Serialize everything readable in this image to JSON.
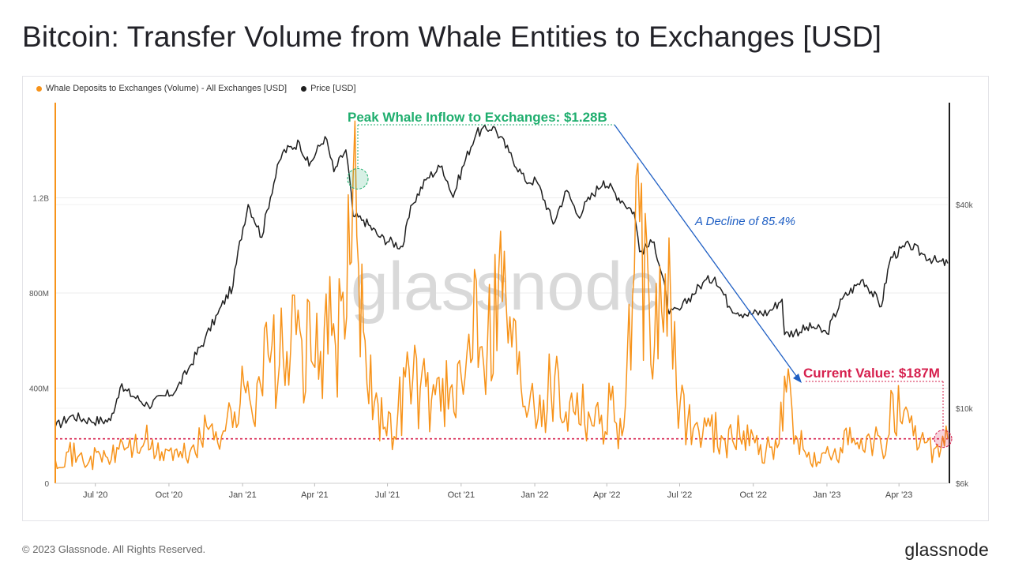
{
  "page": {
    "title": "Bitcoin: Transfer Volume from Whale Entities to Exchanges [USD]",
    "copyright": "© 2023 Glassnode. All Rights Reserved.",
    "logo": "glassnode",
    "watermark": "glassnode"
  },
  "legend": {
    "series1_label": "Whale Deposits to Exchanges (Volume) - All Exchanges [USD]",
    "series2_label": "Price [USD]"
  },
  "chart_data": {
    "type": "line",
    "y_left": {
      "ticks": [
        0,
        400000000,
        800000000,
        1200000000
      ],
      "tick_labels": [
        "0",
        "400M",
        "800M",
        "1.2B"
      ],
      "ylim": [
        0,
        1600000000
      ]
    },
    "y_right": {
      "scale": "log",
      "ticks": [
        6000,
        10000,
        40000
      ],
      "tick_labels": [
        "$6k",
        "$10k",
        "$40k"
      ],
      "ylim": [
        6000,
        80000
      ]
    },
    "x_ticks": [
      "Jul '20",
      "Oct '20",
      "Jan '21",
      "Apr '21",
      "Jul '21",
      "Oct '21",
      "Jan '22",
      "Apr '22",
      "Jul '22",
      "Oct '22",
      "Jan '23",
      "Apr '23"
    ],
    "x_range": [
      "2020-05-12",
      "2023-06-01"
    ],
    "grid": true,
    "legend_position": "top-left",
    "series": [
      {
        "name": "Whale Deposits to Exchanges (Volume) - All Exchanges [USD]",
        "color": "#f7931a",
        "axis": "left",
        "points": [
          [
            "2020-05-12",
            100000000
          ],
          [
            "2020-05-26",
            130000000
          ],
          [
            "2020-06-09",
            110000000
          ],
          [
            "2020-06-23",
            90000000
          ],
          [
            "2020-07-07",
            120000000
          ],
          [
            "2020-07-21",
            100000000
          ],
          [
            "2020-08-04",
            170000000
          ],
          [
            "2020-08-18",
            150000000
          ],
          [
            "2020-09-01",
            180000000
          ],
          [
            "2020-09-15",
            120000000
          ],
          [
            "2020-09-29",
            140000000
          ],
          [
            "2020-10-13",
            110000000
          ],
          [
            "2020-10-27",
            130000000
          ],
          [
            "2020-11-10",
            180000000
          ],
          [
            "2020-11-24",
            250000000
          ],
          [
            "2020-12-08",
            220000000
          ],
          [
            "2020-12-22",
            300000000
          ],
          [
            "2021-01-05",
            380000000
          ],
          [
            "2021-01-19",
            420000000
          ],
          [
            "2021-02-02",
            540000000
          ],
          [
            "2021-02-16",
            500000000
          ],
          [
            "2021-03-02",
            560000000
          ],
          [
            "2021-03-16",
            600000000
          ],
          [
            "2021-03-30",
            500000000
          ],
          [
            "2021-04-13",
            650000000
          ],
          [
            "2021-04-27",
            580000000
          ],
          [
            "2021-05-11",
            700000000
          ],
          [
            "2021-05-19",
            1280000000
          ],
          [
            "2021-05-26",
            900000000
          ],
          [
            "2021-06-03",
            600000000
          ],
          [
            "2021-06-17",
            380000000
          ],
          [
            "2021-06-30",
            200000000
          ],
          [
            "2021-07-14",
            300000000
          ],
          [
            "2021-07-28",
            480000000
          ],
          [
            "2021-08-11",
            400000000
          ],
          [
            "2021-08-25",
            350000000
          ],
          [
            "2021-09-08",
            440000000
          ],
          [
            "2021-09-22",
            300000000
          ],
          [
            "2021-10-06",
            450000000
          ],
          [
            "2021-10-20",
            850000000
          ],
          [
            "2021-11-03",
            600000000
          ],
          [
            "2021-11-17",
            900000000
          ],
          [
            "2021-12-01",
            700000000
          ],
          [
            "2021-12-15",
            400000000
          ],
          [
            "2021-12-29",
            420000000
          ],
          [
            "2022-01-12",
            350000000
          ],
          [
            "2022-01-26",
            450000000
          ],
          [
            "2022-02-09",
            300000000
          ],
          [
            "2022-02-23",
            380000000
          ],
          [
            "2022-03-09",
            300000000
          ],
          [
            "2022-03-23",
            250000000
          ],
          [
            "2022-04-06",
            350000000
          ],
          [
            "2022-04-20",
            200000000
          ],
          [
            "2022-05-12",
            1100000000
          ],
          [
            "2022-05-26",
            500000000
          ],
          [
            "2022-06-13",
            880000000
          ],
          [
            "2022-06-27",
            400000000
          ],
          [
            "2022-07-11",
            260000000
          ],
          [
            "2022-07-25",
            220000000
          ],
          [
            "2022-08-08",
            240000000
          ],
          [
            "2022-08-22",
            200000000
          ],
          [
            "2022-09-05",
            180000000
          ],
          [
            "2022-09-19",
            220000000
          ],
          [
            "2022-10-03",
            170000000
          ],
          [
            "2022-10-17",
            140000000
          ],
          [
            "2022-10-31",
            150000000
          ],
          [
            "2022-11-09",
            450000000
          ],
          [
            "2022-11-23",
            200000000
          ],
          [
            "2022-12-07",
            110000000
          ],
          [
            "2022-12-21",
            90000000
          ],
          [
            "2023-01-04",
            120000000
          ],
          [
            "2023-01-18",
            150000000
          ],
          [
            "2023-02-01",
            170000000
          ],
          [
            "2023-02-15",
            140000000
          ],
          [
            "2023-03-01",
            180000000
          ],
          [
            "2023-03-15",
            120000000
          ],
          [
            "2023-03-22",
            390000000
          ],
          [
            "2023-04-05",
            250000000
          ],
          [
            "2023-04-19",
            200000000
          ],
          [
            "2023-05-03",
            170000000
          ],
          [
            "2023-05-17",
            150000000
          ],
          [
            "2023-06-01",
            187000000
          ]
        ]
      },
      {
        "name": "Price [USD]",
        "color": "#1f1f1f",
        "axis": "right",
        "points": [
          [
            "2020-05-12",
            8800
          ],
          [
            "2020-06-01",
            9500
          ],
          [
            "2020-06-25",
            9200
          ],
          [
            "2020-07-20",
            9200
          ],
          [
            "2020-08-01",
            11500
          ],
          [
            "2020-09-05",
            10200
          ],
          [
            "2020-10-10",
            11300
          ],
          [
            "2020-10-25",
            13000
          ],
          [
            "2020-11-15",
            16000
          ],
          [
            "2020-12-01",
            19000
          ],
          [
            "2020-12-20",
            23000
          ],
          [
            "2021-01-08",
            40000
          ],
          [
            "2021-01-25",
            32000
          ],
          [
            "2021-02-20",
            57000
          ],
          [
            "2021-03-13",
            61000
          ],
          [
            "2021-03-25",
            52000
          ],
          [
            "2021-04-14",
            63500
          ],
          [
            "2021-04-25",
            50000
          ],
          [
            "2021-05-10",
            58000
          ],
          [
            "2021-05-19",
            37000
          ],
          [
            "2021-06-01",
            36000
          ],
          [
            "2021-06-22",
            32000
          ],
          [
            "2021-07-20",
            30000
          ],
          [
            "2021-08-01",
            40000
          ],
          [
            "2021-08-20",
            48000
          ],
          [
            "2021-09-07",
            52000
          ],
          [
            "2021-09-21",
            42000
          ],
          [
            "2021-10-20",
            65000
          ],
          [
            "2021-11-10",
            68000
          ],
          [
            "2021-11-30",
            57000
          ],
          [
            "2021-12-20",
            47000
          ],
          [
            "2022-01-03",
            47000
          ],
          [
            "2022-01-24",
            35000
          ],
          [
            "2022-02-10",
            44000
          ],
          [
            "2022-02-24",
            37000
          ],
          [
            "2022-03-28",
            47000
          ],
          [
            "2022-04-20",
            41000
          ],
          [
            "2022-05-05",
            38000
          ],
          [
            "2022-05-12",
            29000
          ],
          [
            "2022-05-30",
            31000
          ],
          [
            "2022-06-18",
            19000
          ],
          [
            "2022-07-01",
            19500
          ],
          [
            "2022-07-30",
            23500
          ],
          [
            "2022-08-14",
            24400
          ],
          [
            "2022-09-01",
            20000
          ],
          [
            "2022-09-20",
            19000
          ],
          [
            "2022-10-20",
            19200
          ],
          [
            "2022-11-06",
            21000
          ],
          [
            "2022-11-09",
            16500
          ],
          [
            "2022-12-15",
            17400
          ],
          [
            "2023-01-01",
            16600
          ],
          [
            "2023-01-20",
            21000
          ],
          [
            "2023-02-15",
            24000
          ],
          [
            "2023-03-10",
            20000
          ],
          [
            "2023-03-22",
            28000
          ],
          [
            "2023-04-14",
            30400
          ],
          [
            "2023-05-01",
            28500
          ],
          [
            "2023-05-20",
            27000
          ],
          [
            "2023-06-01",
            26800
          ]
        ]
      }
    ],
    "reference_line": {
      "value": 187000000,
      "color": "#d6204e",
      "style": "dotted"
    },
    "annotations": [
      {
        "text": "Peak Whale Inflow to Exchanges: $1.28B",
        "color": "#1fae6e",
        "date": "2021-05-19",
        "value": 1280000000
      },
      {
        "text": "A Decline of 85.4%",
        "color": "#1f5fc4"
      },
      {
        "text": "Current Value: $187M",
        "color": "#d6204e",
        "date": "2023-06-01",
        "value": 187000000
      }
    ]
  }
}
